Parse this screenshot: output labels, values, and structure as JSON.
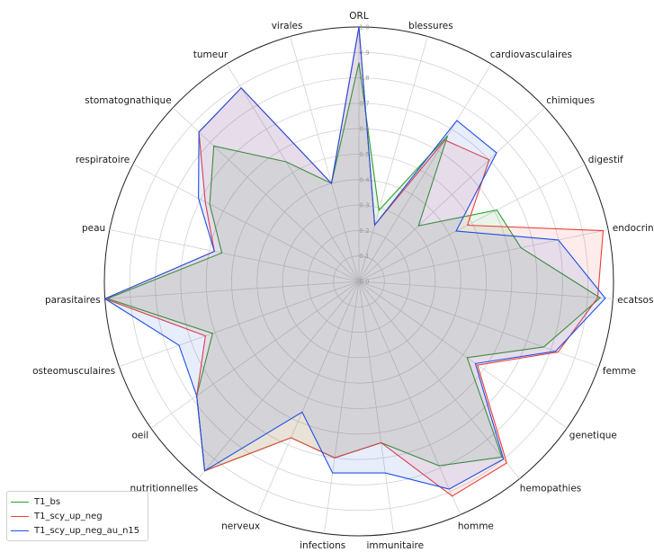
{
  "chart_data": {
    "type": "radar",
    "categories": [
      "ORL",
      "blessures",
      "cardiovasculaires",
      "chimiques",
      "digestif",
      "endocriniennes",
      "ecatsosy",
      "femme",
      "genetique",
      "hemopathies",
      "homme",
      "immunitaire",
      "infections",
      "nerveux",
      "nutritionnelles",
      "oeil",
      "osteomusculaires",
      "parasitaires",
      "peau",
      "respiratoire",
      "stomatognathique",
      "tumeur",
      "virales"
    ],
    "rlim": [
      0,
      1.0
    ],
    "rticks": [
      "0.0",
      "0.1",
      "0.2",
      "0.3",
      "0.4",
      "0.5",
      "0.6",
      "0.7",
      "0.8",
      "0.9",
      "1.0"
    ],
    "grid": true,
    "legend_position": "bottom-left",
    "series": [
      {
        "name": "T1_bs",
        "color": "#2ca02c",
        "values": [
          0.86,
          0.29,
          0.67,
          0.32,
          0.61,
          0.65,
          0.95,
          0.77,
          0.52,
          0.89,
          0.79,
          0.64,
          0.7,
          0.67,
          0.96,
          0.78,
          0.61,
          0.99,
          0.55,
          0.66,
          0.78,
          0.55,
          0.4
        ]
      },
      {
        "name": "T1_scy_up_neg",
        "color": "#e8413c",
        "values": [
          1.0,
          0.23,
          0.65,
          0.7,
          0.48,
          0.98,
          0.94,
          0.83,
          0.57,
          0.92,
          0.92,
          0.64,
          0.7,
          0.67,
          0.96,
          0.78,
          0.64,
          1.0,
          0.58,
          0.68,
          0.86,
          0.89,
          0.4
        ]
      },
      {
        "name": "T1_scy_up_neg_au_n15",
        "color": "#1f4fe5",
        "values": [
          1.0,
          0.23,
          0.74,
          0.74,
          0.43,
          0.8,
          0.97,
          0.82,
          0.56,
          0.9,
          0.89,
          0.76,
          0.76,
          0.56,
          0.96,
          0.78,
          0.75,
          1.0,
          0.58,
          0.71,
          0.86,
          0.89,
          0.4
        ]
      }
    ]
  }
}
